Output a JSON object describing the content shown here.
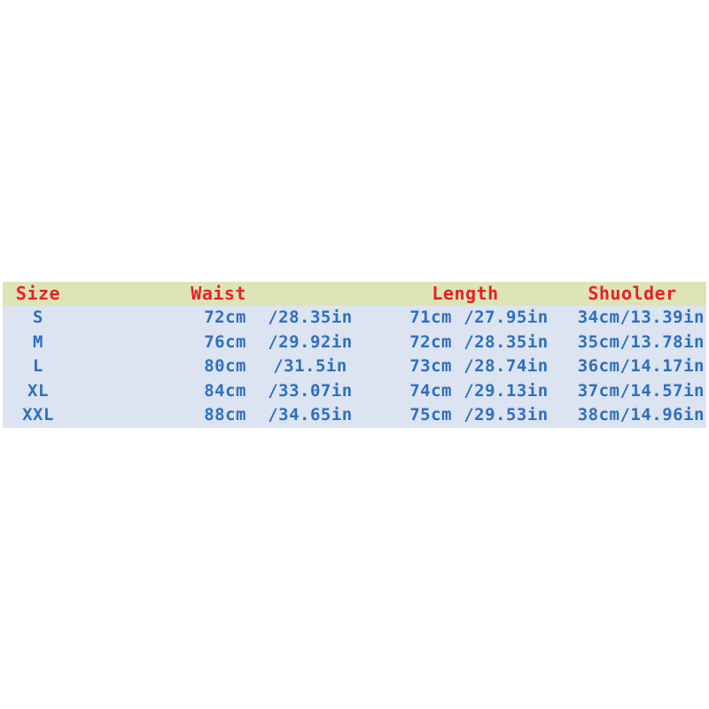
{
  "table": {
    "headers": {
      "size": "Size",
      "waist": "Waist",
      "length": "Length",
      "shoulder": "Shuolder"
    },
    "rows": [
      {
        "size": "S",
        "waist_cm": "72cm",
        "waist_in": "/28.35in",
        "length_cm": "71cm",
        "length_in": "/27.95in",
        "shoulder": "34cm/13.39in"
      },
      {
        "size": "M",
        "waist_cm": "76cm",
        "waist_in": "/29.92in",
        "length_cm": "72cm",
        "length_in": "/28.35in",
        "shoulder": "35cm/13.78in"
      },
      {
        "size": "L",
        "waist_cm": "80cm",
        "waist_in": "/31.5in",
        "length_cm": "73cm",
        "length_in": "/28.74in",
        "shoulder": "36cm/14.17in"
      },
      {
        "size": "XL",
        "waist_cm": "84cm",
        "waist_in": "/33.07in",
        "length_cm": "74cm",
        "length_in": "/29.13in",
        "shoulder": "37cm/14.57in"
      },
      {
        "size": "XXL",
        "waist_cm": "88cm",
        "waist_in": "/34.65in",
        "length_cm": "75cm",
        "length_in": "/29.53in",
        "shoulder": "38cm/14.96in"
      }
    ],
    "colors": {
      "header_bg": "#dde4b5",
      "row_bg": "#dce3f1",
      "header_text": "#ee1e24",
      "row_text": "#2d6fc2"
    }
  },
  "chart_data": {
    "type": "table",
    "title": "",
    "columns": [
      "Size",
      "Waist",
      "Length",
      "Shuolder"
    ],
    "rows": [
      [
        "S",
        "72cm /28.35in",
        "71cm /27.95in",
        "34cm/13.39in"
      ],
      [
        "M",
        "76cm /29.92in",
        "72cm /28.35in",
        "35cm/13.78in"
      ],
      [
        "L",
        "80cm /31.5in",
        "73cm /28.74in",
        "36cm/14.17in"
      ],
      [
        "XL",
        "84cm /33.07in",
        "74cm /29.13in",
        "37cm/14.57in"
      ],
      [
        "XXL",
        "88cm /34.65in",
        "75cm /29.53in",
        "38cm/14.96in"
      ]
    ],
    "units": {
      "waist": "cm/in",
      "length": "cm/in",
      "shoulder": "cm/in"
    },
    "layout_hints": {
      "header_band": "green",
      "body_band": "light-blue",
      "grid": "off"
    }
  }
}
